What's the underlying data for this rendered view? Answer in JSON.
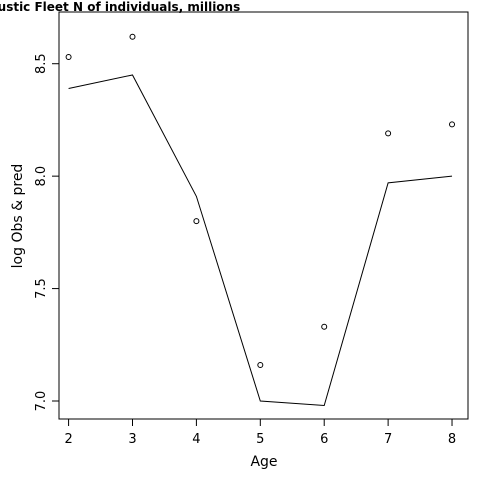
{
  "chart_data": {
    "type": "line",
    "title": "Acoustic Fleet   N of individuals, millions",
    "xlabel": "Age",
    "ylabel": "log Obs & pred",
    "xlim": [
      1.85,
      8.25
    ],
    "ylim": [
      6.92,
      8.73
    ],
    "x_ticks": [
      2,
      3,
      4,
      5,
      6,
      7,
      8
    ],
    "y_ticks": [
      7.0,
      7.5,
      8.0,
      8.5
    ],
    "x_tick_labels": [
      "2",
      "3",
      "4",
      "5",
      "6",
      "7",
      "8"
    ],
    "y_tick_labels": [
      "7.0",
      "7.5",
      "8.0",
      "8.5"
    ],
    "grid": false,
    "series": [
      {
        "kind": "points",
        "marker": "open-circle",
        "x": [
          2,
          3,
          4,
          5,
          6,
          7,
          8
        ],
        "values": [
          8.53,
          8.62,
          7.8,
          7.16,
          7.33,
          8.19,
          8.23
        ]
      },
      {
        "kind": "line",
        "x": [
          2,
          3,
          4,
          5,
          6,
          7,
          8
        ],
        "values": [
          8.39,
          8.45,
          7.91,
          7.0,
          6.98,
          7.97,
          8.0
        ]
      }
    ],
    "colors": {
      "line": "#000000",
      "points": "#000000",
      "frame": "#000000",
      "background": "#ffffff"
    }
  }
}
